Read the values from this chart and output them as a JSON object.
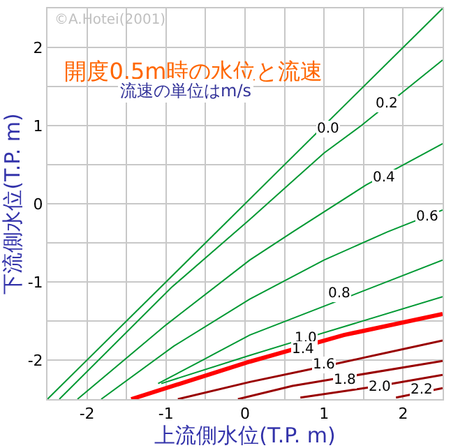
{
  "chart_data": {
    "type": "line",
    "title": "開度0.5m時の水位と流速",
    "subtitle": "流速の単位はm/s",
    "xlabel": "上流側水位(T.P. m)",
    "ylabel": "下流側水位(T.P. m)",
    "xlim": [
      -2.5,
      2.5
    ],
    "ylim": [
      -2.5,
      2.5
    ],
    "xticks": [
      {
        "value": -1.5,
        "label": null
      },
      -2,
      -1,
      {
        "value": -0.5,
        "label": null
      },
      0,
      {
        "value": 0.5,
        "label": null
      },
      1,
      {
        "value": 1.5,
        "label": null
      },
      2
    ],
    "yticks": [
      {
        "value": -1.5,
        "label": null
      },
      -2,
      -1,
      {
        "value": -0.5,
        "label": null
      },
      0,
      {
        "value": 0.5,
        "label": null
      },
      1,
      {
        "value": 1.5,
        "label": null
      },
      2
    ],
    "grid": true,
    "marker": "none",
    "line_style": "solid",
    "series": [
      {
        "color": "#009933",
        "x": [
          -2.5,
          2.5
        ],
        "values": [
          -2.5,
          2.5
        ]
      },
      {
        "color": "#009933",
        "x": [
          -2.35,
          -0.93,
          0.06,
          1.0,
          1.47,
          2.5
        ],
        "values": [
          -2.5,
          -1.07,
          -0.2,
          0.65,
          1.0,
          1.84
        ]
      },
      {
        "color": "#009933",
        "x": [
          -2.12,
          -1.0,
          0.06,
          0.62,
          1.53,
          2.5
        ],
        "values": [
          -2.5,
          -1.55,
          -0.72,
          -0.35,
          0.24,
          0.77
        ]
      },
      {
        "color": "#009933",
        "x": [
          -1.82,
          -0.9,
          0.06,
          1.0,
          1.8,
          2.5
        ],
        "values": [
          -2.5,
          -1.82,
          -1.22,
          -0.72,
          -0.36,
          -0.08
        ]
      },
      {
        "color": "#009933",
        "x": [
          -1.1,
          -0.5,
          0.06,
          1.18,
          2.5
        ],
        "values": [
          -2.3,
          -1.98,
          -1.68,
          -1.24,
          -0.72
        ]
      },
      {
        "color": "#009933",
        "x": [
          -1.06,
          0.06,
          0.77,
          2.5
        ],
        "values": [
          -2.3,
          -1.94,
          -1.72,
          -1.19
        ]
      },
      {
        "color": "#ff0000",
        "x": [
          -1.44,
          0.06,
          1.25,
          2.5
        ],
        "values": [
          -2.5,
          -2.02,
          -1.68,
          -1.41
        ]
      },
      {
        "color": "#990000",
        "x": [
          -0.85,
          0.06,
          1.0,
          1.5,
          2.5
        ],
        "values": [
          -2.5,
          -2.28,
          -2.08,
          -1.97,
          -1.75
        ]
      },
      {
        "color": "#990000",
        "x": [
          -0.09,
          0.6,
          2.5
        ],
        "values": [
          -2.5,
          -2.33,
          -2.01
        ]
      },
      {
        "color": "#990000",
        "x": [
          0.7,
          1.7,
          2.5
        ],
        "values": [
          -2.48,
          -2.33,
          -2.19
        ]
      },
      {
        "color": "#990000",
        "x": [
          1.91,
          2.5
        ],
        "values": [
          -2.48,
          -2.36
        ]
      }
    ],
    "annotations": [
      "©A.Hotei(2001)",
      {
        "text": "0.0",
        "x": 1.05,
        "y": 0.95
      },
      {
        "text": "0.2",
        "x": 1.8,
        "y": 1.27
      },
      {
        "text": "0.4",
        "x": 1.75,
        "y": 0.33
      },
      {
        "text": "0.6",
        "x": 2.3,
        "y": -0.17
      },
      {
        "text": "0.8",
        "x": 1.2,
        "y": -1.16
      },
      {
        "text": "1.0",
        "x": 0.77,
        "y": -1.72
      },
      {
        "text": "1.4",
        "x": 0.74,
        "y": -1.86
      },
      {
        "text": "1.6",
        "x": 1.0,
        "y": -2.06
      },
      {
        "text": "1.8",
        "x": 1.26,
        "y": -2.25
      },
      {
        "text": "2.0",
        "x": 1.7,
        "y": -2.35
      },
      {
        "text": "2.2",
        "x": 2.23,
        "y": -2.38
      }
    ]
  }
}
